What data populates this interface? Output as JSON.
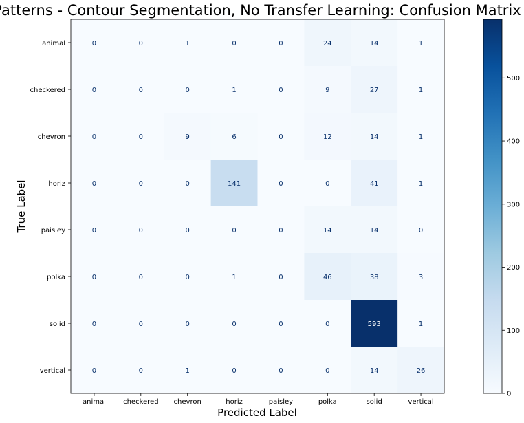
{
  "chart_data": {
    "type": "heatmap",
    "title": "Patterns - Contour Segmentation, No Transfer Learning: Confusion Matrix",
    "xlabel": "Predicted Label",
    "ylabel": "True Label",
    "categories": [
      "animal",
      "checkered",
      "chevron",
      "horiz",
      "paisley",
      "polka",
      "solid",
      "vertical"
    ],
    "values": [
      [
        0,
        0,
        1,
        0,
        0,
        24,
        14,
        1
      ],
      [
        0,
        0,
        0,
        1,
        0,
        9,
        27,
        1
      ],
      [
        0,
        0,
        9,
        6,
        0,
        12,
        14,
        1
      ],
      [
        0,
        0,
        0,
        141,
        0,
        0,
        41,
        1
      ],
      [
        0,
        0,
        0,
        0,
        0,
        14,
        14,
        0
      ],
      [
        0,
        0,
        0,
        1,
        0,
        46,
        38,
        3
      ],
      [
        0,
        0,
        0,
        0,
        0,
        0,
        593,
        1
      ],
      [
        0,
        0,
        1,
        0,
        0,
        0,
        14,
        26
      ]
    ],
    "colormap": "Blues",
    "colorbar": {
      "min": 0,
      "max": 593,
      "ticks": [
        0,
        100,
        200,
        300,
        400,
        500
      ]
    }
  }
}
